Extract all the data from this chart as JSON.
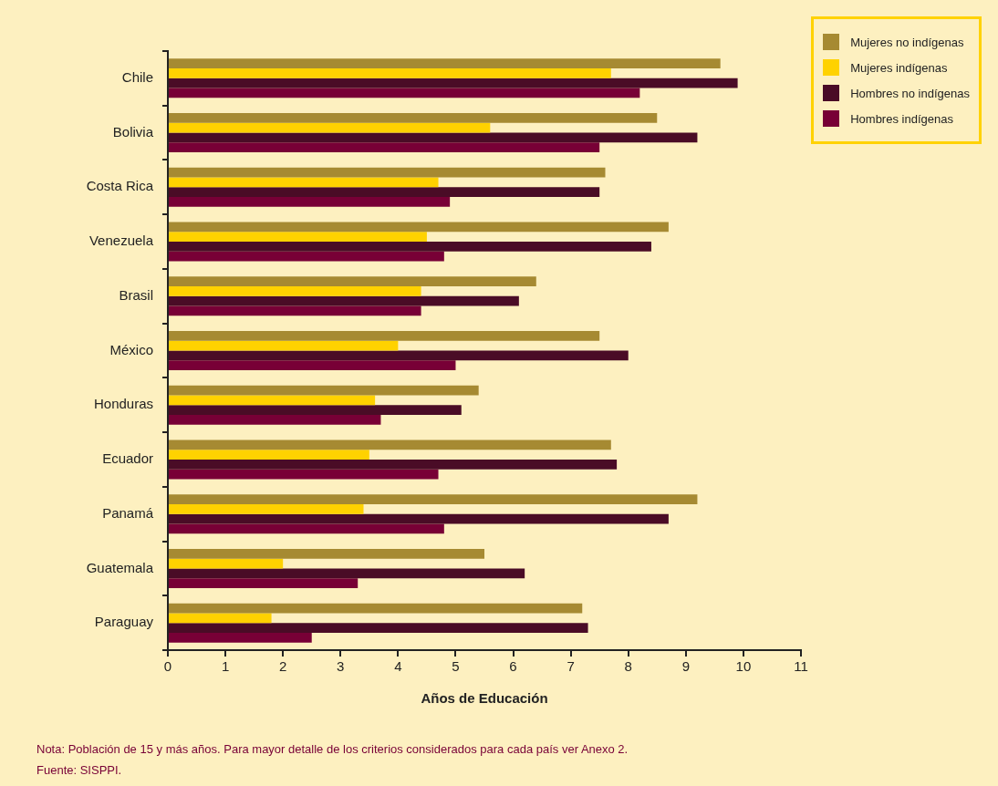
{
  "chart_data": {
    "type": "bar",
    "orientation": "horizontal",
    "xlabel": "Años de Educación",
    "categories": [
      "Chile",
      "Bolivia",
      "Costa Rica",
      "Venezuela",
      "Brasil",
      "México",
      "Honduras",
      "Ecuador",
      "Panamá",
      "Guatemala",
      "Paraguay"
    ],
    "series": [
      {
        "name": "Mujeres no indígenas",
        "color": "#a68a32",
        "values": [
          9.6,
          8.5,
          7.6,
          8.7,
          6.4,
          7.5,
          5.4,
          7.7,
          9.2,
          5.5,
          7.2
        ]
      },
      {
        "name": "Mujeres indígenas",
        "color": "#ffd200",
        "values": [
          7.7,
          5.6,
          4.7,
          4.5,
          4.4,
          4.0,
          3.6,
          3.5,
          3.4,
          2.0,
          1.8
        ]
      },
      {
        "name": "Hombres no indígenas",
        "color": "#4a0c26",
        "values": [
          9.9,
          9.2,
          7.5,
          8.4,
          6.1,
          8.0,
          5.1,
          7.8,
          8.7,
          6.2,
          7.3
        ]
      },
      {
        "name": "Hombres indígenas",
        "color": "#780036",
        "values": [
          8.2,
          7.5,
          4.9,
          4.8,
          4.4,
          5.0,
          3.7,
          4.7,
          4.8,
          3.3,
          2.5
        ]
      }
    ],
    "xlim": [
      0,
      11
    ],
    "xticks": [
      0,
      1,
      2,
      3,
      4,
      5,
      6,
      7,
      8,
      9,
      10,
      11
    ],
    "legend": "top right",
    "annotations": [
      "Nota: Población de 15 y más años. Para mayor detalle de los criterios considerados para cada país ver Anexo 2.",
      "Fuente: SISPPI."
    ]
  }
}
